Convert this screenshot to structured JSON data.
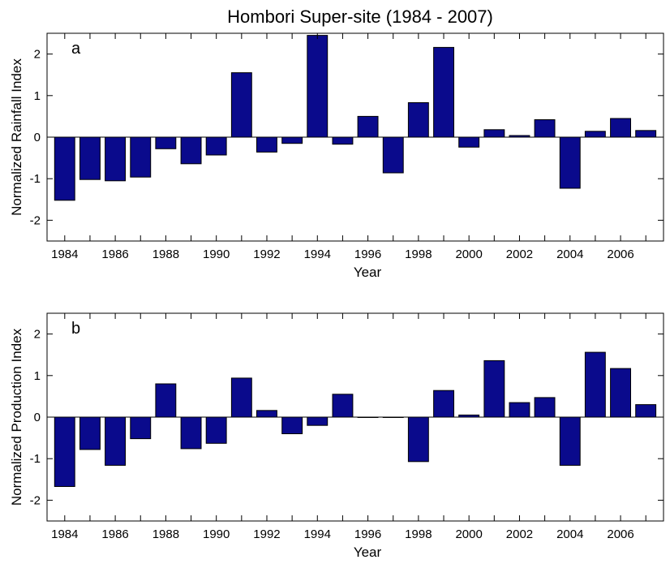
{
  "figure_title": "Hombori Super-site (1984 - 2007)",
  "colors": {
    "bar": "#0a0a8c",
    "axis": "#000000"
  },
  "chart_data": [
    {
      "type": "bar",
      "panel": "a",
      "xlabel": "Year",
      "ylabel": "Normalized Rainfall Index",
      "ylim": [
        -2.5,
        2.5
      ],
      "yticks": [
        -2,
        -1,
        0,
        1,
        2
      ],
      "xlim": [
        1983.3,
        2007.7
      ],
      "xticks": [
        1984,
        1986,
        1988,
        1990,
        1992,
        1994,
        1996,
        1998,
        2000,
        2002,
        2004,
        2006
      ],
      "grid": false,
      "x": [
        1984,
        1985,
        1986,
        1987,
        1988,
        1989,
        1990,
        1991,
        1992,
        1993,
        1994,
        1995,
        1996,
        1997,
        1998,
        1999,
        2000,
        2001,
        2002,
        2003,
        2004,
        2005,
        2006,
        2007
      ],
      "values": [
        -1.52,
        -1.02,
        -1.05,
        -0.96,
        -0.28,
        -0.64,
        -0.43,
        1.55,
        -0.36,
        -0.15,
        2.45,
        -0.17,
        0.5,
        -0.86,
        0.83,
        2.16,
        -0.24,
        0.18,
        0.04,
        0.42,
        -1.23,
        0.14,
        0.45,
        0.16
      ]
    },
    {
      "type": "bar",
      "panel": "b",
      "xlabel": "Year",
      "ylabel": "Normalized Production Index",
      "ylim": [
        -2.5,
        2.5
      ],
      "yticks": [
        -2,
        -1,
        0,
        1,
        2
      ],
      "xlim": [
        1983.3,
        2007.7
      ],
      "xticks": [
        1984,
        1986,
        1988,
        1990,
        1992,
        1994,
        1996,
        1998,
        2000,
        2002,
        2004,
        2006
      ],
      "grid": false,
      "x": [
        1984,
        1985,
        1986,
        1987,
        1988,
        1989,
        1990,
        1991,
        1992,
        1993,
        1994,
        1995,
        1996,
        1997,
        1998,
        1999,
        2000,
        2001,
        2002,
        2003,
        2004,
        2005,
        2006,
        2007
      ],
      "values": [
        -1.67,
        -0.78,
        -1.16,
        -0.52,
        0.8,
        -0.76,
        -0.63,
        0.94,
        0.16,
        -0.4,
        -0.2,
        0.55,
        0.0,
        0.0,
        -1.07,
        0.64,
        0.05,
        1.36,
        0.35,
        0.47,
        -1.16,
        1.56,
        1.17,
        0.3
      ]
    }
  ]
}
